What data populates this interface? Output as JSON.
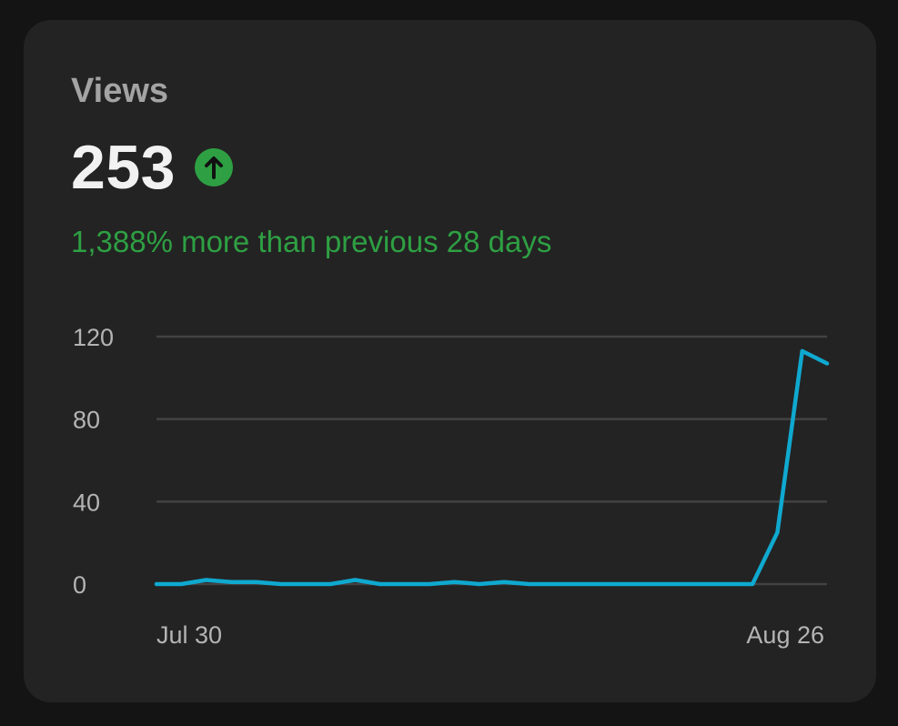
{
  "card": {
    "label": "Views",
    "value": "253",
    "trend_icon": "arrow-up-circle-icon",
    "trend_color": "#2ea043",
    "comparison_text": "1,388% more than previous 28 days"
  },
  "colors": {
    "background": "#141414",
    "card": "#232323",
    "series": "#0fa9d0",
    "positive": "#2ea043"
  },
  "chart_data": {
    "type": "line",
    "title": "",
    "xlabel": "",
    "ylabel": "",
    "ylim": [
      0,
      120
    ],
    "yticks": [
      0,
      40,
      80,
      120
    ],
    "ytick_labels": [
      "0",
      "40",
      "80",
      "120"
    ],
    "xtick_labels": [
      "Jul 30",
      "Aug 26"
    ],
    "grid": true,
    "legend": "none",
    "series": [
      {
        "values": [
          0,
          0,
          2,
          1,
          1,
          0,
          0,
          0,
          2,
          0,
          0,
          0,
          1,
          0,
          1,
          0,
          0,
          0,
          0,
          0,
          0,
          0,
          0,
          0,
          0,
          25,
          113,
          107
        ]
      }
    ]
  }
}
